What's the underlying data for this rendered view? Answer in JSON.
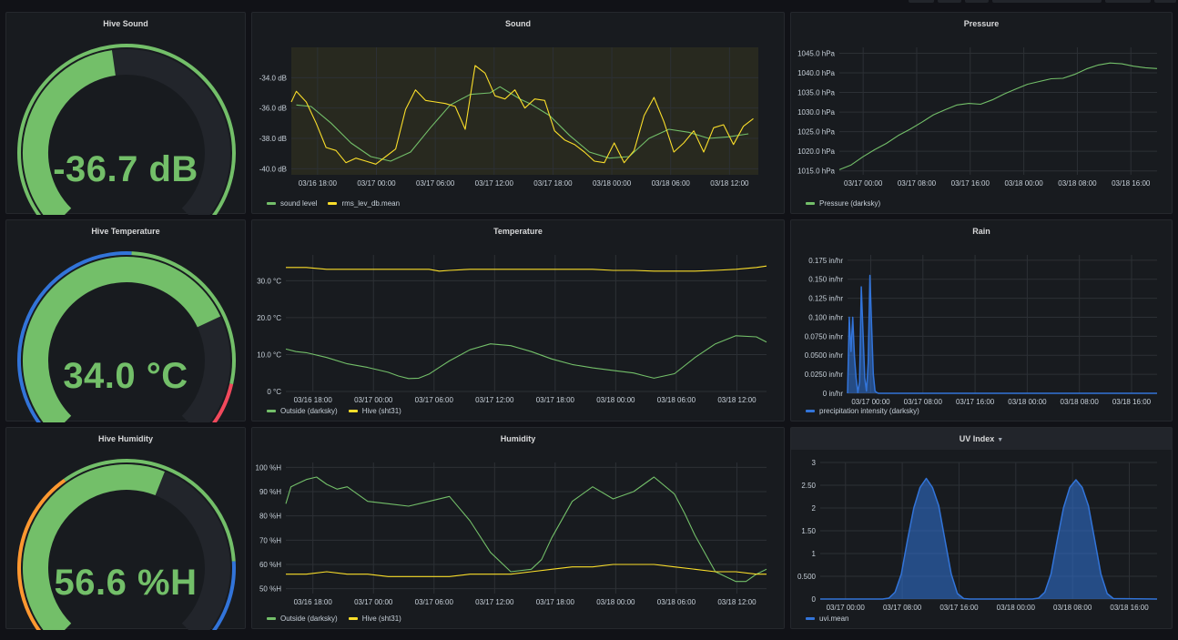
{
  "colors": {
    "green": "#73bf69",
    "yellow": "#fade2a",
    "blue": "#3274d9",
    "red": "#f2495c",
    "orange": "#ff9830",
    "gauge_track": "#22252b"
  },
  "panels": {
    "hive_sound": {
      "title": "Hive Sound",
      "value": "-36.7 dB",
      "level": 0.47,
      "thresholds": [
        {
          "color": "#73bf69",
          "from": 0,
          "to": 1
        }
      ]
    },
    "hive_temperature": {
      "title": "Hive Temperature",
      "value": "34.0 °C",
      "level": 0.74,
      "thresholds": [
        {
          "color": "#3274d9",
          "from": 0,
          "to": 0.51
        },
        {
          "color": "#73bf69",
          "from": 0.51,
          "to": 0.88
        },
        {
          "color": "#f2495c",
          "from": 0.88,
          "to": 1
        }
      ]
    },
    "hive_humidity": {
      "title": "Hive Humidity",
      "value": "56.6 %H",
      "level": 0.58,
      "thresholds": [
        {
          "color": "#ff9830",
          "from": 0,
          "to": 0.37
        },
        {
          "color": "#73bf69",
          "from": 0.37,
          "to": 0.82
        },
        {
          "color": "#3274d9",
          "from": 0.82,
          "to": 1
        }
      ]
    },
    "sound": {
      "title": "Sound"
    },
    "temperature": {
      "title": "Temperature"
    },
    "humidity": {
      "title": "Humidity"
    },
    "pressure": {
      "title": "Pressure"
    },
    "rain": {
      "title": "Rain"
    },
    "uv_index": {
      "title": "UV Index"
    }
  },
  "chart_data": [
    {
      "id": "sound",
      "type": "line",
      "title": "Sound",
      "x_ticks": [
        "03/16 18:00",
        "03/17 00:00",
        "03/17 06:00",
        "03/17 12:00",
        "03/17 18:00",
        "03/18 00:00",
        "03/18 06:00",
        "03/18 12:00"
      ],
      "y_ticks": [
        "-34.0 dB",
        "-36.0 dB",
        "-38.0 dB",
        "-40.0 dB"
      ],
      "ylim": [
        -40.4,
        -32.0
      ],
      "xlim": [
        0,
        47
      ],
      "threshold_band": {
        "from": -40.4,
        "to": -32.0,
        "color": "#fade2a"
      },
      "series": [
        {
          "name": "sound level",
          "color": "#73bf69",
          "x": [
            0.5,
            2,
            4,
            6,
            8,
            10,
            12,
            14,
            16,
            18,
            20,
            21,
            22,
            23,
            24,
            26,
            28,
            30,
            32,
            34,
            36,
            38,
            40,
            42,
            44,
            46
          ],
          "y": [
            -35.8,
            -35.9,
            -37.0,
            -38.3,
            -39.2,
            -39.5,
            -38.9,
            -37.3,
            -35.8,
            -35.1,
            -35.0,
            -34.6,
            -35.0,
            -35.4,
            -35.7,
            -36.5,
            -37.8,
            -38.9,
            -39.3,
            -39.2,
            -38.0,
            -37.4,
            -37.6,
            -38.0,
            -37.9,
            -37.7
          ]
        },
        {
          "name": "rms_lev_db.mean",
          "color": "#fade2a",
          "x": [
            -0.5,
            0.5,
            1.5,
            2.5,
            3.5,
            4.5,
            5.5,
            6.5,
            7.5,
            8.5,
            9.5,
            10.5,
            11.5,
            12.5,
            13.5,
            14.5,
            15.5,
            16.5,
            17.5,
            18.5,
            19.5,
            20.5,
            21.5,
            22.5,
            23.5,
            24.5,
            25.5,
            26.5,
            27.5,
            28.5,
            29.5,
            30.5,
            31.5,
            32.5,
            33.5,
            34.5,
            35.5,
            36.5,
            37.5,
            38.5,
            39.5,
            40.5,
            41.5,
            42.5,
            43.5,
            44.5,
            45.5,
            46.5
          ],
          "y": [
            -35.6,
            -34.9,
            -35.6,
            -37.0,
            -38.6,
            -38.8,
            -39.6,
            -39.3,
            -39.5,
            -39.7,
            -39.2,
            -38.7,
            -36.1,
            -34.8,
            -35.5,
            -35.6,
            -35.7,
            -35.9,
            -37.4,
            -33.2,
            -33.7,
            -35.2,
            -35.4,
            -34.8,
            -36.0,
            -35.4,
            -35.5,
            -37.5,
            -38.1,
            -38.4,
            -38.9,
            -39.5,
            -39.6,
            -38.3,
            -39.6,
            -38.8,
            -36.5,
            -35.3,
            -36.9,
            -38.9,
            -38.3,
            -37.5,
            -38.9,
            -37.3,
            -37.1,
            -38.4,
            -37.2,
            -36.7
          ]
        }
      ]
    },
    {
      "id": "temperature",
      "type": "line",
      "title": "Temperature",
      "x_ticks": [
        "03/16 18:00",
        "03/17 00:00",
        "03/17 06:00",
        "03/17 12:00",
        "03/17 18:00",
        "03/18 00:00",
        "03/18 06:00",
        "03/18 12:00"
      ],
      "y_ticks": [
        "30.0 °C",
        "20.0 °C",
        "10.0 °C",
        "0 °C"
      ],
      "ylim": [
        0,
        37
      ],
      "xlim": [
        0,
        47
      ],
      "series": [
        {
          "name": "Outside (darksky)",
          "color": "#73bf69",
          "x": [
            0,
            1,
            2,
            4,
            6,
            8,
            10,
            11,
            12,
            13,
            14,
            15,
            16,
            18,
            20,
            22,
            24,
            26,
            28,
            30,
            32,
            34,
            35,
            36,
            38,
            40,
            42,
            44,
            46,
            47
          ],
          "y": [
            11.5,
            10.8,
            10.5,
            9.2,
            7.5,
            6.5,
            5.2,
            4.2,
            3.5,
            3.6,
            4.7,
            6.5,
            8.3,
            11.3,
            12.9,
            12.4,
            10.8,
            8.8,
            7.3,
            6.4,
            5.7,
            5.0,
            4.3,
            3.6,
            4.8,
            9.2,
            12.9,
            15.1,
            14.8,
            13.4
          ]
        },
        {
          "name": "Hive (sht31)",
          "color": "#fade2a",
          "x": [
            0,
            2,
            4,
            6,
            8,
            10,
            12,
            14,
            15,
            16,
            18,
            20,
            22,
            24,
            26,
            28,
            30,
            32,
            34,
            36,
            38,
            40,
            42,
            44,
            46,
            47
          ],
          "y": [
            33.6,
            33.6,
            33.1,
            33.1,
            33.1,
            33.1,
            33.1,
            33.1,
            32.6,
            32.8,
            33.1,
            33.1,
            33.1,
            33.1,
            33.1,
            33.1,
            33.1,
            32.8,
            32.8,
            32.6,
            32.6,
            32.6,
            32.8,
            33.1,
            33.6,
            34.0
          ]
        }
      ]
    },
    {
      "id": "humidity",
      "type": "line",
      "title": "Humidity",
      "x_ticks": [
        "03/16 18:00",
        "03/17 00:00",
        "03/17 06:00",
        "03/17 12:00",
        "03/17 18:00",
        "03/18 00:00",
        "03/18 06:00",
        "03/18 12:00"
      ],
      "y_ticks": [
        "100 %H",
        "90 %H",
        "80 %H",
        "70 %H",
        "60 %H",
        "50 %H"
      ],
      "ylim": [
        48,
        102
      ],
      "xlim": [
        0,
        47
      ],
      "series": [
        {
          "name": "Outside (darksky)",
          "color": "#73bf69",
          "x": [
            0,
            0.5,
            1,
            2,
            3,
            4,
            5,
            6,
            7,
            8,
            10,
            12,
            14,
            16,
            18,
            20,
            22,
            24,
            25,
            26,
            28,
            30,
            32,
            34,
            36,
            38,
            39,
            40,
            42,
            44,
            45,
            46,
            47
          ],
          "y": [
            85,
            92,
            93,
            95,
            96,
            93,
            91,
            92,
            89,
            86,
            85,
            84,
            86,
            88,
            78,
            65,
            57,
            58,
            62,
            71,
            86,
            92,
            87,
            90,
            96,
            89,
            81,
            72,
            57,
            53,
            53,
            56,
            58
          ]
        },
        {
          "name": "Hive (sht31)",
          "color": "#fade2a",
          "x": [
            0,
            2,
            4,
            6,
            8,
            10,
            12,
            14,
            16,
            18,
            20,
            22,
            24,
            26,
            28,
            30,
            32,
            34,
            36,
            38,
            40,
            42,
            44,
            46,
            47
          ],
          "y": [
            56,
            56,
            57,
            56,
            56,
            55,
            55,
            55,
            55,
            56,
            56,
            56,
            57,
            58,
            59,
            59,
            60,
            60,
            60,
            59,
            58,
            57,
            57,
            56,
            56
          ]
        }
      ]
    },
    {
      "id": "pressure",
      "type": "line",
      "title": "Pressure",
      "x_ticks": [
        "03/17 00:00",
        "03/17 08:00",
        "03/17 16:00",
        "03/18 00:00",
        "03/18 08:00",
        "03/18 16:00"
      ],
      "y_ticks": [
        "1045.0 hPa",
        "1040.0 hPa",
        "1035.0 hPa",
        "1030.0 hPa",
        "1025.0 hPa",
        "1020.0 hPa",
        "1015.0 hPa"
      ],
      "ylim": [
        1014,
        1046.5
      ],
      "xlim": [
        0,
        54
      ],
      "series": [
        {
          "name": "Pressure (darksky)",
          "color": "#73bf69",
          "x": [
            0,
            2,
            4,
            6,
            8,
            10,
            12,
            14,
            16,
            18,
            20,
            22,
            24,
            26,
            28,
            30,
            32,
            34,
            36,
            38,
            40,
            42,
            44,
            46,
            48,
            50,
            52,
            54
          ],
          "y": [
            1015.3,
            1016.5,
            1018.6,
            1020.4,
            1022.0,
            1024.0,
            1025.6,
            1027.4,
            1029.3,
            1030.6,
            1031.8,
            1032.2,
            1032.0,
            1033.1,
            1034.6,
            1035.9,
            1037.1,
            1037.8,
            1038.5,
            1038.6,
            1039.6,
            1041.0,
            1042.0,
            1042.5,
            1042.3,
            1041.7,
            1041.3,
            1041.1
          ]
        }
      ]
    },
    {
      "id": "rain",
      "type": "area",
      "title": "Rain",
      "x_ticks": [
        "03/17 00:00",
        "03/17 08:00",
        "03/17 16:00",
        "03/18 00:00",
        "03/18 08:00",
        "03/18 16:00"
      ],
      "y_ticks": [
        "0.175 in/hr",
        "0.150 in/hr",
        "0.125 in/hr",
        "0.100 in/hr",
        "0.0750 in/hr",
        "0.0500 in/hr",
        "0.0250 in/hr",
        "0 in/hr"
      ],
      "ylim": [
        0,
        0.182
      ],
      "xlim": [
        0,
        54
      ],
      "series": [
        {
          "name": "precipitation intensity (darksky)",
          "color": "#3274d9",
          "x": [
            0,
            0.3,
            0.6,
            0.9,
            1.2,
            1.5,
            1.8,
            2.1,
            2.4,
            2.7,
            3.0,
            3.3,
            3.6,
            3.9,
            4.2,
            4.5,
            4.8,
            5.1,
            5.4,
            5.7,
            6.0,
            7.0,
            10,
            20,
            30,
            40,
            50,
            54
          ],
          "y": [
            0,
            0.1,
            0.055,
            0.1,
            0.048,
            0.02,
            0.001,
            0.015,
            0.14,
            0.08,
            0.02,
            0.003,
            0.04,
            0.155,
            0.09,
            0.025,
            0.003,
            0.001,
            0,
            0,
            0,
            0,
            0,
            0,
            0,
            0,
            0,
            0
          ]
        }
      ]
    },
    {
      "id": "uv_index",
      "type": "area",
      "title": "UV Index",
      "x_ticks": [
        "03/17 00:00",
        "03/17 08:00",
        "03/17 16:00",
        "03/18 00:00",
        "03/18 08:00",
        "03/18 16:00"
      ],
      "y_ticks": [
        "3",
        "2.50",
        "2",
        "1.50",
        "1",
        "0.500",
        "0"
      ],
      "ylim": [
        0,
        3
      ],
      "xlim": [
        0,
        54
      ],
      "series": [
        {
          "name": "uvi.mean",
          "color": "#3274d9",
          "x": [
            0,
            8,
            10,
            11,
            12,
            13,
            14,
            15,
            16,
            17,
            18,
            19,
            20,
            21,
            22,
            23,
            24,
            32,
            34,
            35,
            36,
            37,
            38,
            39,
            40,
            41,
            42,
            43,
            44,
            45,
            46,
            47,
            54
          ],
          "y": [
            0,
            0,
            0,
            0.02,
            0.15,
            0.55,
            1.3,
            2.0,
            2.45,
            2.65,
            2.45,
            2.05,
            1.3,
            0.55,
            0.12,
            0.01,
            0,
            0,
            0,
            0.02,
            0.15,
            0.55,
            1.3,
            2.0,
            2.45,
            2.62,
            2.45,
            2.05,
            1.3,
            0.55,
            0.12,
            0.01,
            0
          ]
        }
      ]
    }
  ]
}
